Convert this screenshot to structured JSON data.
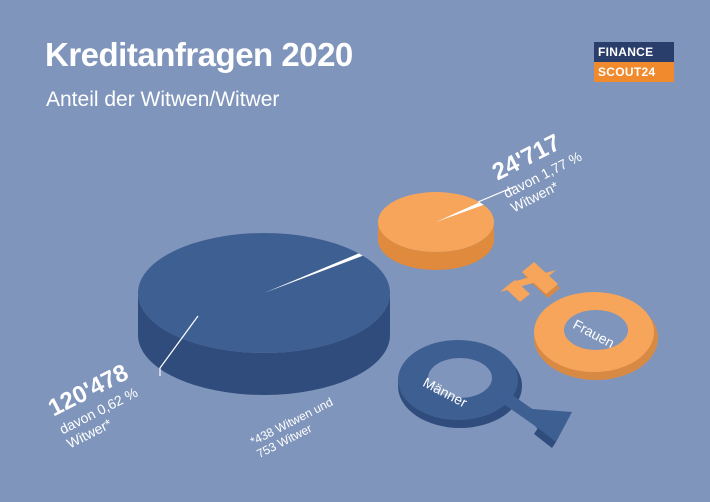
{
  "title": "Kreditanfragen 2020",
  "subtitle": "Anteil der Witwen/Witwer",
  "logo": {
    "line1": "FINANCE",
    "line2": "SCOUT24"
  },
  "colors": {
    "background": "#7f95bb",
    "men": "#3e5f92",
    "women": "#f6a55b",
    "logo_dark": "#2a3e6c",
    "logo_orange": "#f08a2c"
  },
  "chart_data": {
    "type": "pie",
    "charts": [
      {
        "name": "Männer",
        "total_label": "120'478",
        "share_label": "davon 0,62 %",
        "share_group": "Witwer*",
        "total": 120478,
        "share_percent": 0.62,
        "color": "#3e5f92"
      },
      {
        "name": "Frauen",
        "total_label": "24'717",
        "share_label": "davon 1,77 %",
        "share_group": "Witwen*",
        "total": 24717,
        "share_percent": 1.77,
        "color": "#f6a55b"
      }
    ],
    "footnote": {
      "line1": "*438 Witwen und",
      "line2": "753 Witwer"
    }
  },
  "symbols": {
    "men_label": "Männer",
    "women_label": "Frauen",
    "men_icon": "male-symbol-icon",
    "women_icon": "female-symbol-icon"
  }
}
